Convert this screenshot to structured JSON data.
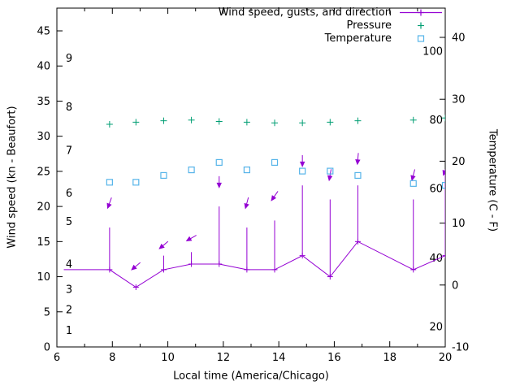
{
  "chart_data": {
    "type": "line",
    "title": "",
    "legend": [
      {
        "label": "Wind speed, gusts, and direction",
        "series": "wind"
      },
      {
        "label": "Pressure",
        "series": "pressure"
      },
      {
        "label": "Temperature",
        "series": "temperature"
      }
    ],
    "x_axis": {
      "label": "Local time (America/Chicago)",
      "min": 6,
      "max": 20,
      "ticks": [
        6,
        8,
        10,
        12,
        14,
        16,
        18,
        20
      ],
      "minor_tick_every": 1
    },
    "y_left_axis": {
      "label": "Wind speed (kn - Beaufort)",
      "min": 0,
      "max": 45,
      "ticks": [
        0,
        5,
        10,
        15,
        20,
        25,
        30,
        35,
        40,
        45
      ],
      "beaufort_labels": [
        {
          "text": "1",
          "kn": 2.4
        },
        {
          "text": "2",
          "kn": 5.3
        },
        {
          "text": "3",
          "kn": 8.2
        },
        {
          "text": "4",
          "kn": 11.8
        },
        {
          "text": "5",
          "kn": 17.9
        },
        {
          "text": "6",
          "kn": 21.9
        },
        {
          "text": "7",
          "kn": 28
        },
        {
          "text": "8",
          "kn": 34.2
        },
        {
          "text": "9",
          "kn": 41.1
        }
      ]
    },
    "y_right_axis": {
      "label": "Temperature (C - F)",
      "min": -10,
      "max": 40,
      "ticks": [
        -10,
        0,
        10,
        20,
        30,
        40
      ],
      "fahrenheit_labels": [
        {
          "text": "20",
          "c": -6.7
        },
        {
          "text": "40",
          "c": 4.4
        },
        {
          "text": "60",
          "c": 15.6
        },
        {
          "text": "80",
          "c": 26.7
        },
        {
          "text": "100",
          "c": 37.8
        }
      ]
    },
    "series": {
      "wind": {
        "color": "#9400d3",
        "axis": "left",
        "x": [
          6.25,
          7.9,
          8.85,
          9.85,
          10.85,
          11.85,
          12.85,
          13.85,
          14.85,
          15.85,
          16.85,
          18.85,
          20
        ],
        "speed_kn": [
          11,
          11,
          8.5,
          11,
          11.8,
          11.8,
          11,
          11,
          13,
          10,
          15,
          11,
          13
        ],
        "gust_kn": [
          null,
          17,
          null,
          13,
          13.5,
          20,
          17,
          18,
          23,
          21,
          23,
          21,
          25
        ],
        "dir_arrows": [
          {
            "x": 7.9,
            "kn": 20.5,
            "deg": 200
          },
          {
            "x": 8.85,
            "kn": 11.5,
            "deg": 230
          },
          {
            "x": 9.85,
            "kn": 14.5,
            "deg": 230
          },
          {
            "x": 10.85,
            "kn": 15.5,
            "deg": 240
          },
          {
            "x": 11.85,
            "kn": 23.5,
            "deg": 180
          },
          {
            "x": 12.85,
            "kn": 20.5,
            "deg": 195
          },
          {
            "x": 13.85,
            "kn": 21.5,
            "deg": 215
          },
          {
            "x": 14.85,
            "kn": 26.5,
            "deg": 180
          },
          {
            "x": 15.85,
            "kn": 24.5,
            "deg": 190
          },
          {
            "x": 16.85,
            "kn": 26.8,
            "deg": 185
          },
          {
            "x": 18.85,
            "kn": 24.5,
            "deg": 195
          },
          {
            "x": 20,
            "kn": 25.2,
            "deg": 200
          }
        ]
      },
      "pressure": {
        "color": "#009e73",
        "axis": "unscaled (plotted against left axis, no pressure scale shown)",
        "x": [
          7.9,
          8.85,
          9.85,
          10.85,
          11.85,
          12.85,
          13.85,
          14.85,
          15.85,
          16.85,
          18.85,
          20
        ],
        "plotted_kn_axis": [
          31.7,
          32,
          32.2,
          32.3,
          32.1,
          32,
          31.9,
          31.9,
          32,
          32.2,
          32.3,
          32.6
        ]
      },
      "temperature": {
        "color": "#56b4e9",
        "axis": "right",
        "x": [
          7.9,
          8.85,
          9.85,
          10.85,
          11.85,
          12.85,
          13.85,
          14.85,
          15.85,
          16.85,
          18.85,
          20
        ],
        "c": [
          16.6,
          16.6,
          17.7,
          18.6,
          19.8,
          18.6,
          19.8,
          18.4,
          18.4,
          17.7,
          16.4,
          16.1
        ]
      }
    }
  }
}
